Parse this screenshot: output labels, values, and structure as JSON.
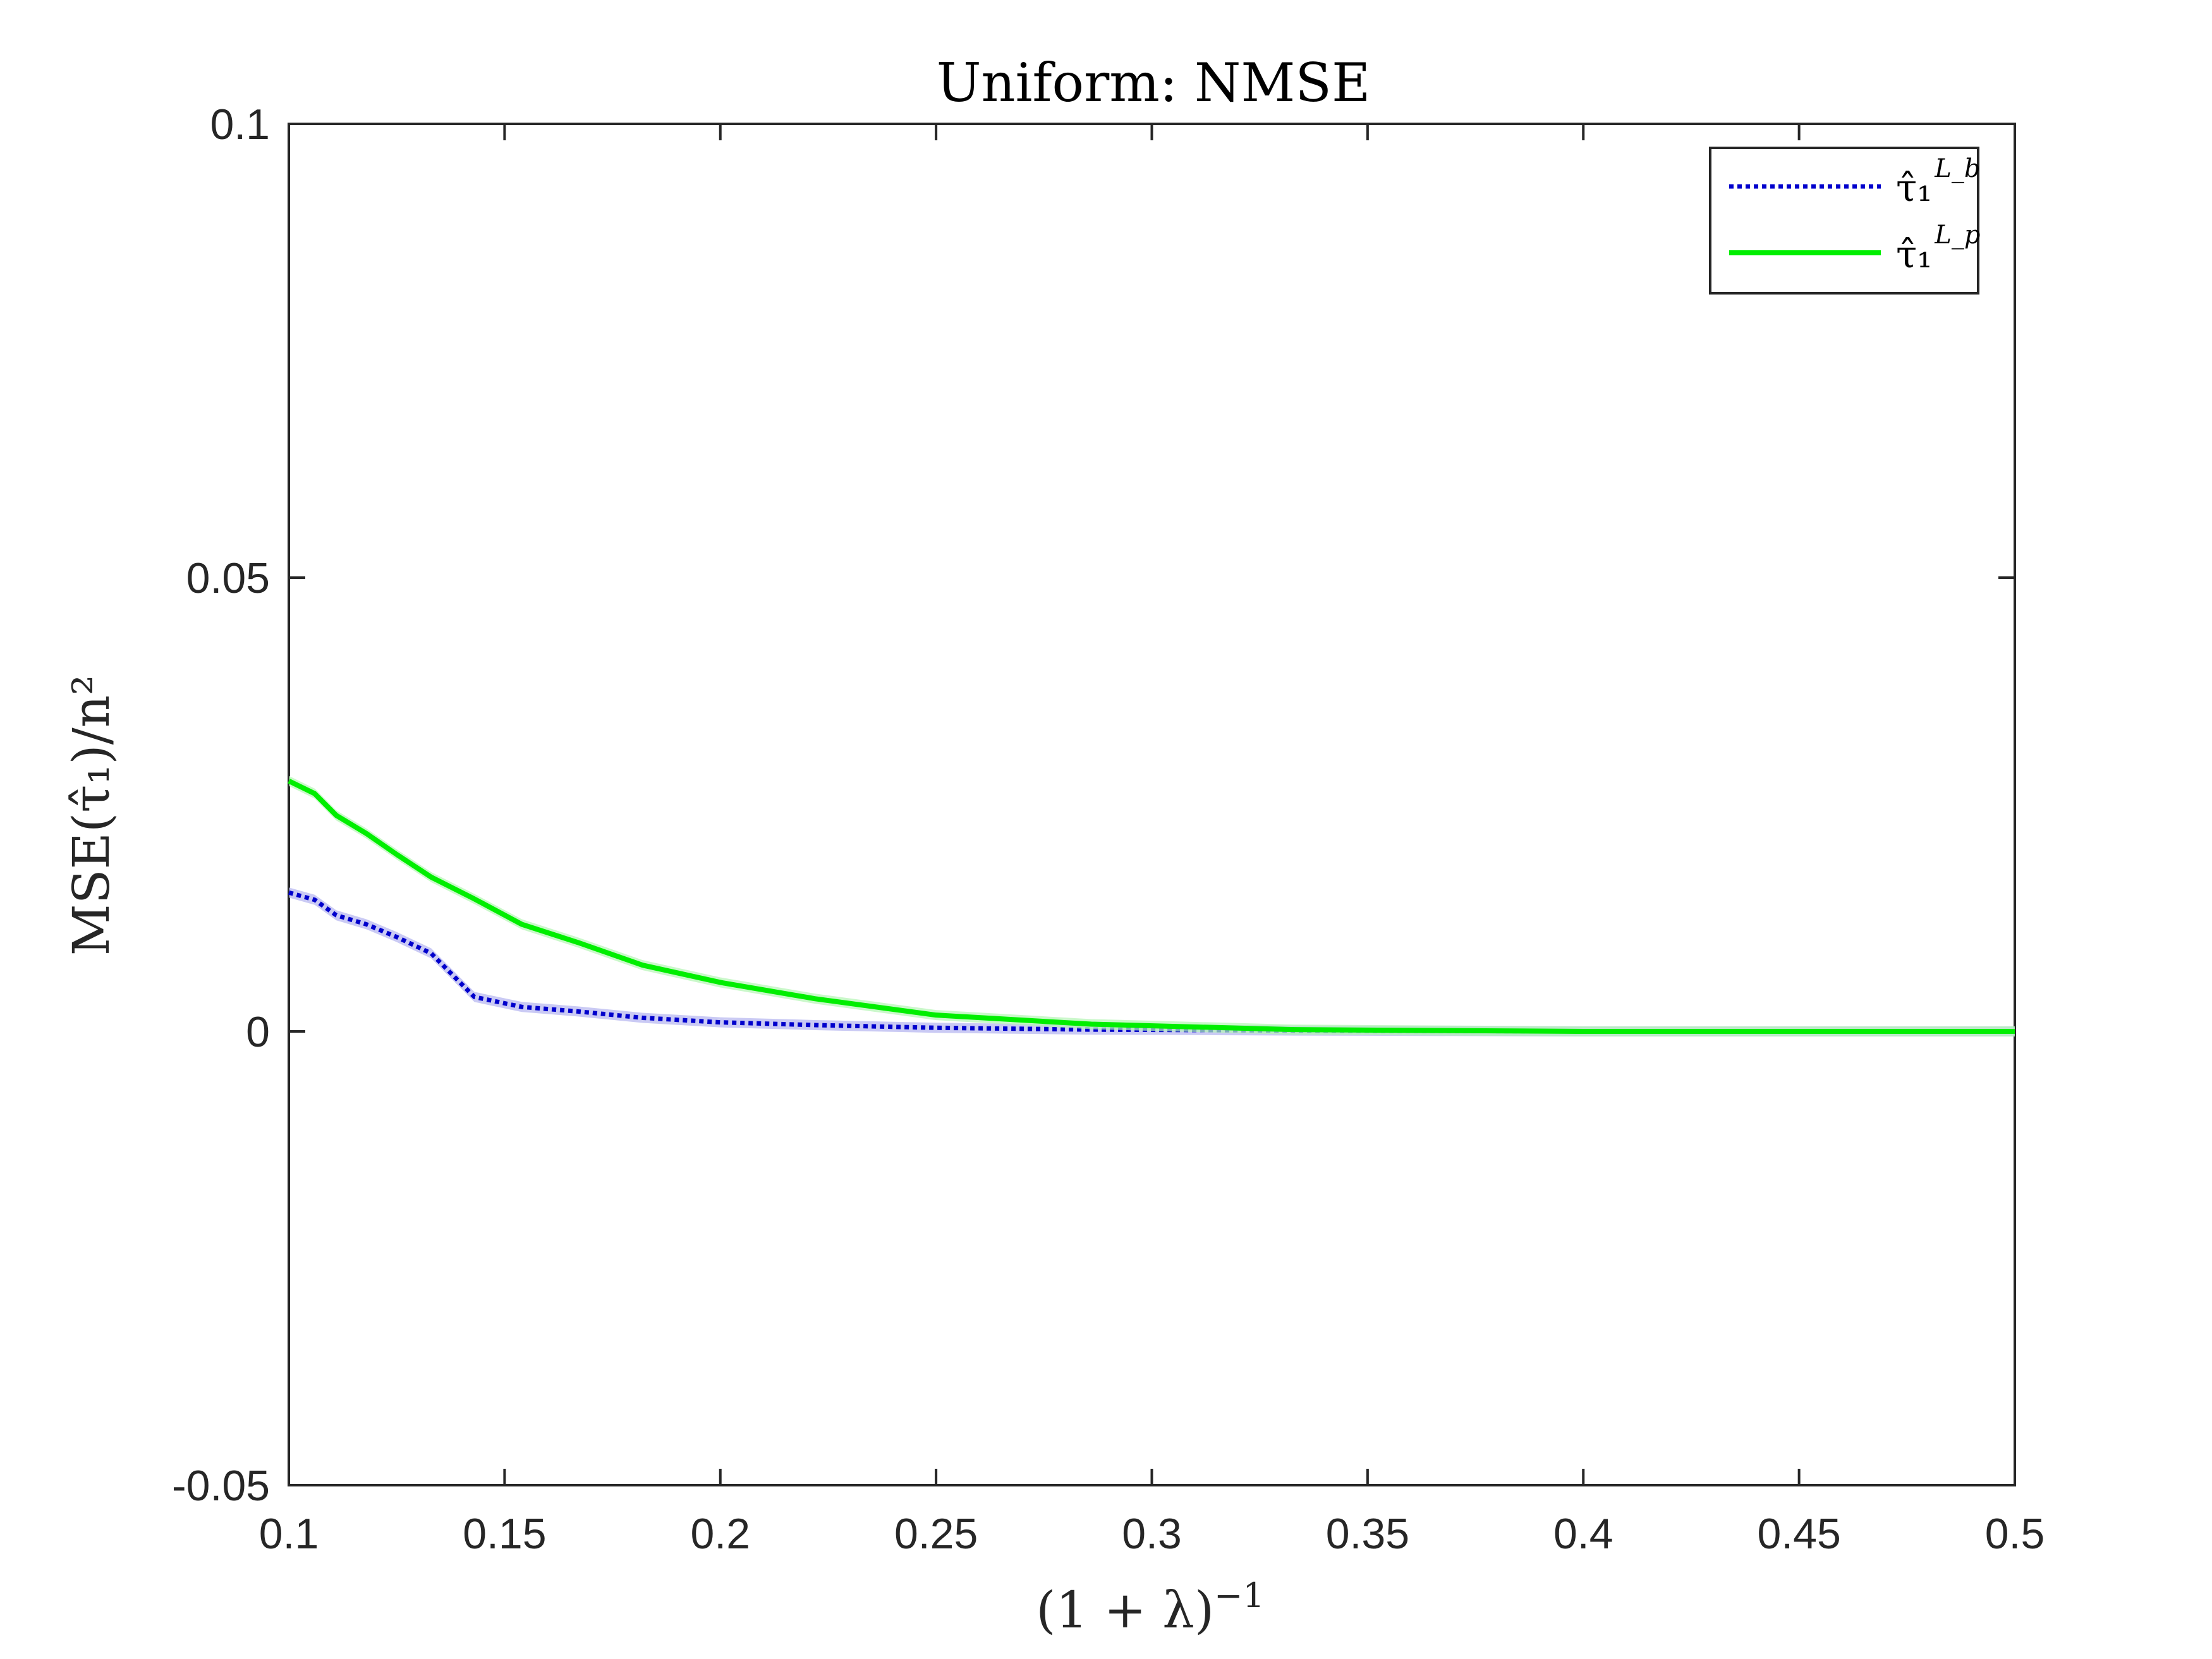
{
  "chart_data": {
    "type": "line",
    "title": "Uniform: NMSE",
    "xlabel": "(1 + λ)",
    "xlabel_sup": "−1",
    "ylabel": "MSE(τ̂₁)/n²",
    "xlim": [
      0.1,
      0.5
    ],
    "ylim": [
      -0.05,
      0.1
    ],
    "xticks": [
      0.1,
      0.15,
      0.2,
      0.25,
      0.3,
      0.35,
      0.4,
      0.45,
      0.5
    ],
    "xtick_labels": [
      "0.1",
      "0.15",
      "0.2",
      "0.25",
      "0.3",
      "0.35",
      "0.4",
      "0.45",
      "0.5"
    ],
    "yticks": [
      -0.05,
      0,
      0.05,
      0.1
    ],
    "ytick_labels": [
      "-0.05",
      "0",
      "0.05",
      "0.1"
    ],
    "grid": false,
    "legend_position": "top-right",
    "series": [
      {
        "name": "τ̂₁",
        "name_sup": "L_b",
        "color": "#0000cc",
        "band_color": "#b3b3f0",
        "style": "dotted",
        "x": [
          0.1,
          0.106,
          0.111,
          0.118,
          0.125,
          0.133,
          0.143,
          0.154,
          0.167,
          0.182,
          0.2,
          0.222,
          0.25,
          0.286,
          0.333,
          0.4,
          0.5
        ],
        "y": [
          0.0153,
          0.0145,
          0.0128,
          0.0118,
          0.0104,
          0.0086,
          0.0038,
          0.0027,
          0.0022,
          0.0015,
          0.001,
          0.0007,
          0.0004,
          0.0002,
          0.0001,
          0.0,
          0.0
        ]
      },
      {
        "name": "τ̂₁",
        "name_sup": "L_p",
        "color": "#00ee00",
        "band_color": "#b3f5b3",
        "style": "solid",
        "x": [
          0.1,
          0.106,
          0.111,
          0.118,
          0.125,
          0.133,
          0.143,
          0.154,
          0.167,
          0.182,
          0.2,
          0.222,
          0.25,
          0.286,
          0.333,
          0.4,
          0.5
        ],
        "y": [
          0.0276,
          0.0262,
          0.0238,
          0.0218,
          0.0195,
          0.017,
          0.0146,
          0.0118,
          0.0098,
          0.0073,
          0.0054,
          0.0036,
          0.0018,
          0.0008,
          0.0002,
          0.0,
          0.0
        ]
      }
    ]
  }
}
